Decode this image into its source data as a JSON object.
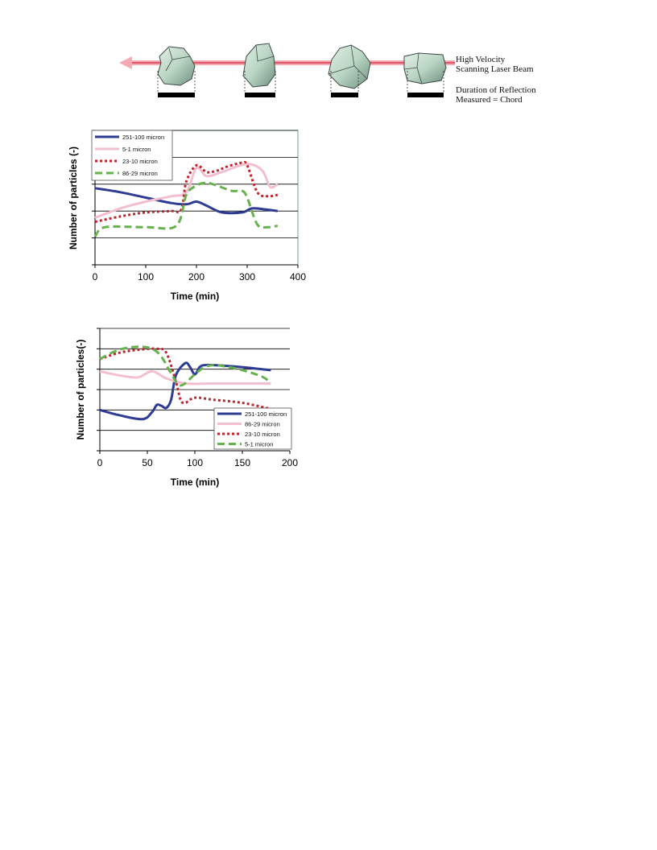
{
  "diagram": {
    "beam_label_line1": "High Velocity",
    "beam_label_line2": "Scanning Laser Beam",
    "chord_label_line1": "Duration of Reflection",
    "chord_label_line2": "Measured = Chord",
    "beam_color": "#e0384d",
    "particle_color": "#b9d5c3"
  },
  "chart_data": [
    {
      "type": "line",
      "xlabel": "Time (min)",
      "ylabel": "Number of particles (-)",
      "xlim": [
        0,
        400
      ],
      "ylim": [
        0,
        5
      ],
      "xticks": [
        "0",
        "100",
        "200",
        "300",
        "400"
      ],
      "legend": "top-left",
      "grid": true,
      "series": [
        {
          "name": "251-100 micron",
          "color": "#2e3c94",
          "dash": "solid",
          "x": [
            0,
            50,
            100,
            150,
            180,
            200,
            220,
            250,
            290,
            310,
            340,
            360
          ],
          "y": [
            2.85,
            2.7,
            2.5,
            2.3,
            2.25,
            2.35,
            2.2,
            1.95,
            1.95,
            2.1,
            2.05,
            2.0
          ]
        },
        {
          "name": "5-1 micron",
          "color": "#f2bfd1",
          "dash": "solid",
          "x": [
            0,
            50,
            100,
            150,
            180,
            200,
            220,
            250,
            300,
            330,
            345,
            360
          ],
          "y": [
            1.75,
            2.1,
            2.35,
            2.55,
            2.7,
            3.6,
            3.3,
            3.45,
            3.75,
            3.5,
            2.9,
            3.0
          ]
        },
        {
          "name": "23-10 micron",
          "color": "#c0242d",
          "dash": "dot",
          "x": [
            0,
            50,
            100,
            150,
            170,
            180,
            200,
            220,
            240,
            260,
            290,
            300,
            320,
            340,
            360
          ],
          "y": [
            1.6,
            1.8,
            1.95,
            2.0,
            2.05,
            3.1,
            3.7,
            3.45,
            3.5,
            3.65,
            3.8,
            3.7,
            2.7,
            2.55,
            2.6
          ]
        },
        {
          "name": "86-29 micron",
          "color": "#66b24f",
          "dash": "dash",
          "x": [
            0,
            20,
            100,
            160,
            180,
            200,
            220,
            240,
            270,
            290,
            300,
            320,
            340,
            360
          ],
          "y": [
            1.05,
            1.4,
            1.4,
            1.45,
            2.6,
            2.95,
            3.05,
            2.95,
            2.75,
            2.75,
            2.5,
            1.5,
            1.4,
            1.45
          ]
        }
      ]
    },
    {
      "type": "line",
      "xlabel": "Time (min)",
      "ylabel": "Number of particles(-)",
      "xlim": [
        0,
        200
      ],
      "ylim": [
        0,
        6
      ],
      "xticks": [
        "0",
        "50",
        "100",
        "150",
        "200"
      ],
      "legend": "bottom-right",
      "grid": true,
      "series": [
        {
          "name": "251-100 micron",
          "color": "#2e3c94",
          "dash": "solid",
          "x": [
            0,
            20,
            45,
            55,
            60,
            65,
            70,
            75,
            80,
            90,
            95,
            100,
            105,
            110,
            120,
            150,
            180
          ],
          "y": [
            2.0,
            1.75,
            1.55,
            1.9,
            2.25,
            2.2,
            2.1,
            2.5,
            3.7,
            4.3,
            4.1,
            3.75,
            4.1,
            4.2,
            4.2,
            4.1,
            3.95
          ]
        },
        {
          "name": "86-29 micron",
          "color": "#f2bfd1",
          "dash": "solid",
          "x": [
            0,
            20,
            40,
            55,
            70,
            90,
            120,
            150,
            180
          ],
          "y": [
            3.9,
            3.7,
            3.6,
            3.9,
            3.55,
            3.3,
            3.3,
            3.3,
            3.3
          ]
        },
        {
          "name": "23-10 micron",
          "color": "#c0242d",
          "dash": "dot",
          "x": [
            0,
            20,
            40,
            60,
            70,
            80,
            85,
            90,
            100,
            120,
            150,
            180
          ],
          "y": [
            4.5,
            4.8,
            4.95,
            5.0,
            4.8,
            3.4,
            2.5,
            2.35,
            2.6,
            2.5,
            2.35,
            2.05
          ]
        },
        {
          "name": "5-1 micron",
          "color": "#66b24f",
          "dash": "dash",
          "x": [
            0,
            20,
            40,
            55,
            65,
            75,
            85,
            100,
            110,
            120,
            130,
            150,
            170,
            180
          ],
          "y": [
            4.5,
            4.95,
            5.1,
            5.0,
            4.6,
            3.8,
            3.2,
            3.75,
            4.1,
            4.2,
            4.15,
            3.95,
            3.65,
            3.35
          ]
        }
      ]
    }
  ]
}
